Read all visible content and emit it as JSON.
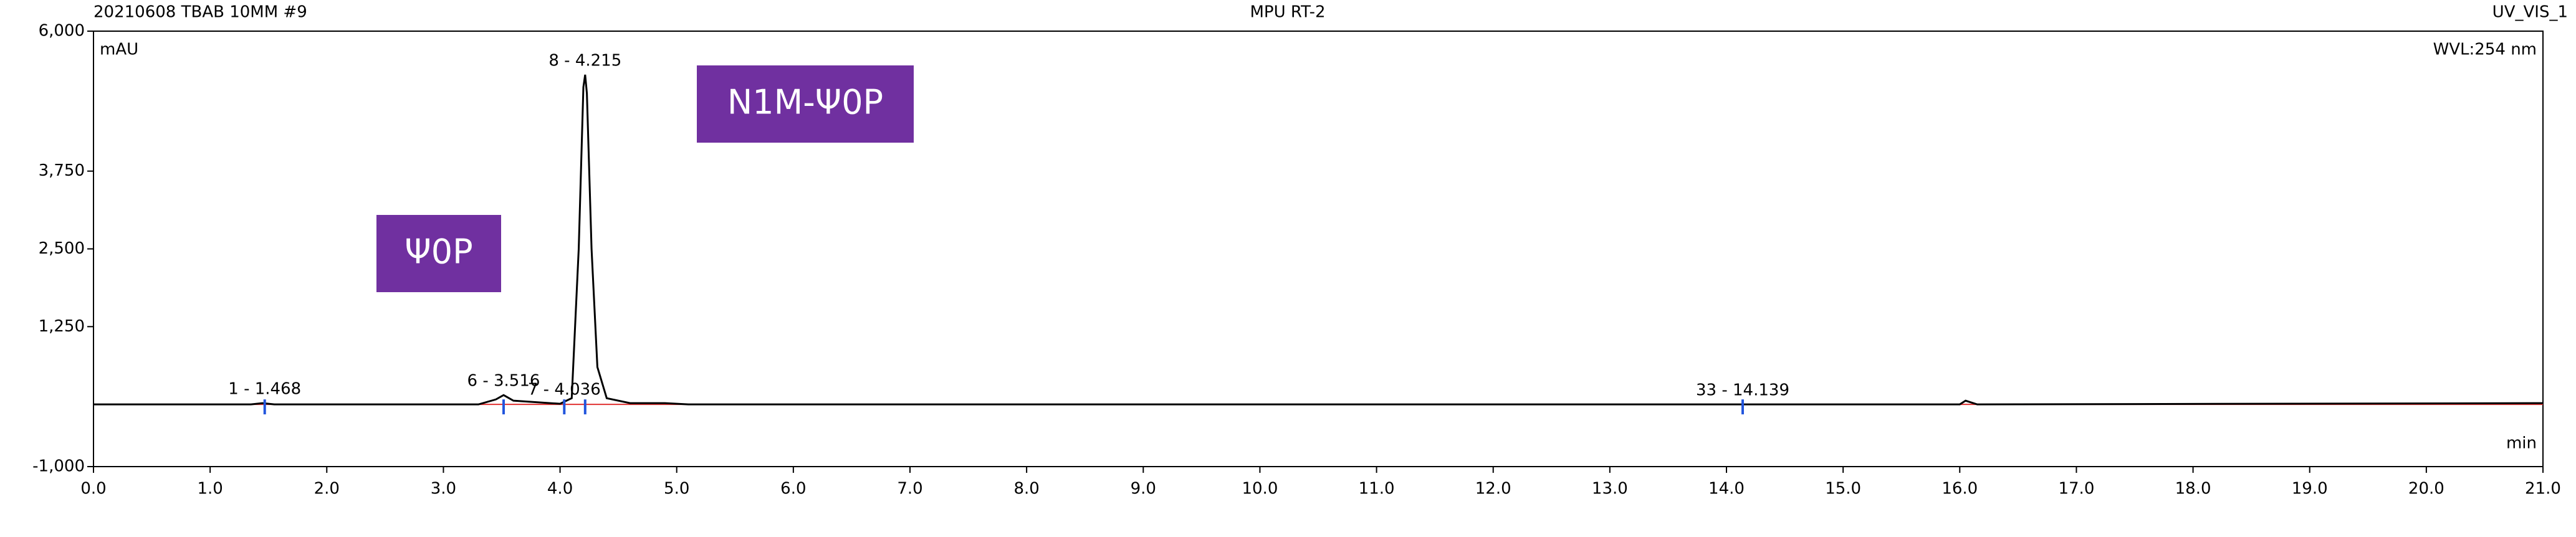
{
  "chart_data": {
    "type": "line",
    "title": "MPU RT-2",
    "sample": "20210608 TBAB 10MM #9",
    "channel": "UV_VIS_1",
    "y_label": "mAU",
    "x_label": "min",
    "wavelength": "WVL:254 nm",
    "annotations": [
      "N1M-Ψ0P",
      "Ψ0P"
    ],
    "xlim": [
      0,
      21
    ],
    "ylim": [
      -1000,
      6000
    ],
    "xticks": [
      {
        "value": 0,
        "label": "0.0"
      },
      {
        "value": 1,
        "label": "1.0"
      },
      {
        "value": 2,
        "label": "2.0"
      },
      {
        "value": 3,
        "label": "3.0"
      },
      {
        "value": 4,
        "label": "4.0"
      },
      {
        "value": 5,
        "label": "5.0"
      },
      {
        "value": 6,
        "label": "6.0"
      },
      {
        "value": 7,
        "label": "7.0"
      },
      {
        "value": 8,
        "label": "8.0"
      },
      {
        "value": 9,
        "label": "9.0"
      },
      {
        "value": 10,
        "label": "10.0"
      },
      {
        "value": 11,
        "label": "11.0"
      },
      {
        "value": 12,
        "label": "12.0"
      },
      {
        "value": 13,
        "label": "13.0"
      },
      {
        "value": 14,
        "label": "14.0"
      },
      {
        "value": 15,
        "label": "15.0"
      },
      {
        "value": 16,
        "label": "16.0"
      },
      {
        "value": 17,
        "label": "17.0"
      },
      {
        "value": 18,
        "label": "18.0"
      },
      {
        "value": 19,
        "label": "19.0"
      },
      {
        "value": 20,
        "label": "20.0"
      },
      {
        "value": 21,
        "label": "21.0"
      }
    ],
    "yticks": [
      {
        "value": -1000,
        "label": "-1,000"
      },
      {
        "value": 1250,
        "label": "1,250"
      },
      {
        "value": 2500,
        "label": "2,500"
      },
      {
        "value": 3750,
        "label": "3,750"
      },
      {
        "value": 6000,
        "label": "6,000"
      }
    ],
    "series": [
      {
        "color": "#000000",
        "x": [
          0.0,
          0.75,
          1.35,
          1.45,
          1.55,
          3.3,
          3.45,
          3.516,
          3.6,
          4.0,
          4.1,
          4.16,
          4.2,
          4.215,
          4.23,
          4.27,
          4.32,
          4.4,
          4.6,
          4.9,
          5.1,
          16.0,
          16.05,
          16.15,
          21.0
        ],
        "values": [
          0,
          0,
          0,
          20,
          0,
          0,
          80,
          150,
          60,
          10,
          100,
          2500,
          5100,
          5300,
          5000,
          2500,
          600,
          100,
          20,
          20,
          0,
          0,
          60,
          0,
          20
        ]
      }
    ],
    "peaks": [
      {
        "label": "1 - 1.468",
        "x": 1.468,
        "y": 20
      },
      {
        "label": "6 - 3.516",
        "x": 3.516,
        "y": 150
      },
      {
        "label": "7 - 4.036",
        "x": 4.036,
        "y": 10
      },
      {
        "label": "8 - 4.215",
        "x": 4.215,
        "y": 5300
      },
      {
        "label": "33 - 14.139",
        "x": 14.139,
        "y": 0
      }
    ]
  }
}
